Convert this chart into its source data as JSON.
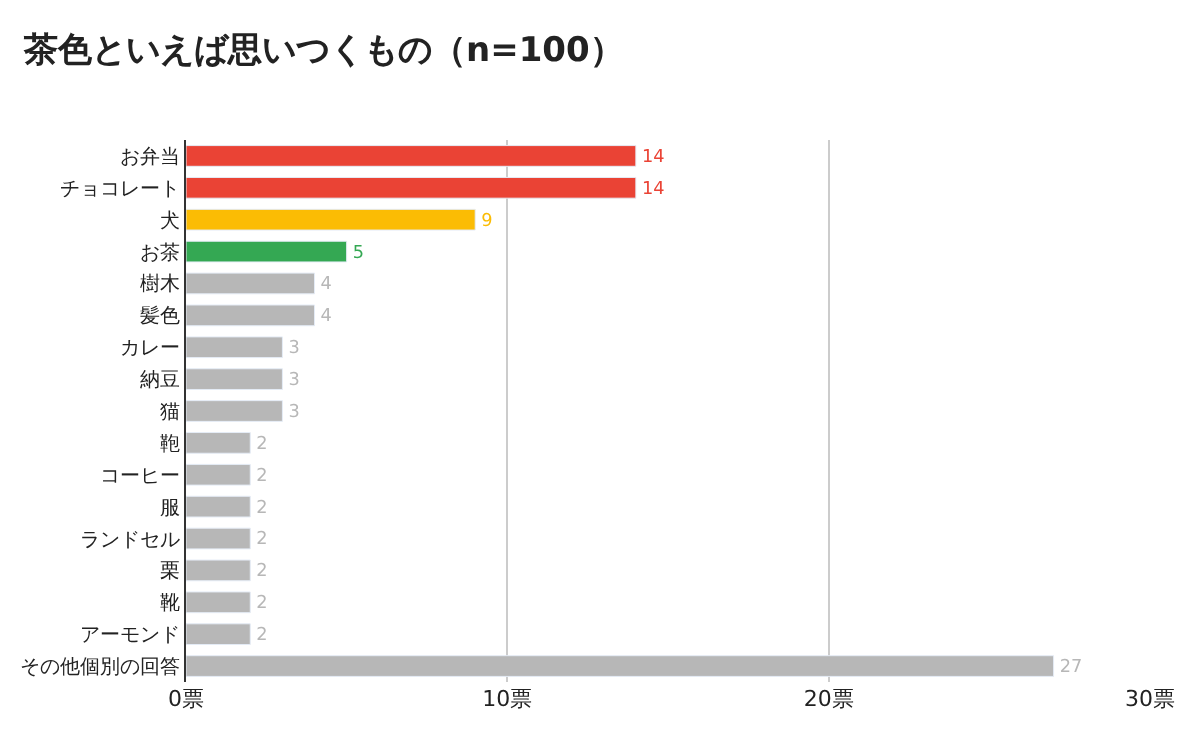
{
  "chart_data": {
    "type": "bar",
    "orientation": "horizontal",
    "title": "茶色といえば思いつくもの（n=100）",
    "categories": [
      "お弁当",
      "チョコレート",
      "犬",
      "お茶",
      "樹木",
      "髪色",
      "カレー",
      "納豆",
      "猫",
      "鞄",
      "コーヒー",
      "服",
      "ランドセル",
      "栗",
      "靴",
      "アーモンド",
      "その他個別の回答"
    ],
    "values": [
      14,
      14,
      9,
      5,
      4,
      4,
      3,
      3,
      3,
      2,
      2,
      2,
      2,
      2,
      2,
      2,
      27
    ],
    "colors": [
      "#ea4335",
      "#ea4335",
      "#fbbc04",
      "#34a853",
      "#b7b7b7",
      "#b7b7b7",
      "#b7b7b7",
      "#b7b7b7",
      "#b7b7b7",
      "#b7b7b7",
      "#b7b7b7",
      "#b7b7b7",
      "#b7b7b7",
      "#b7b7b7",
      "#b7b7b7",
      "#b7b7b7",
      "#b7b7b7"
    ],
    "xlim": [
      0,
      30
    ],
    "xticks": [
      {
        "value": 0,
        "label": "0票"
      },
      {
        "value": 10,
        "label": "10票"
      },
      {
        "value": 20,
        "label": "20票"
      },
      {
        "value": 30,
        "label": "30票"
      }
    ],
    "grid": "x",
    "data_labels": true,
    "legend": false
  }
}
